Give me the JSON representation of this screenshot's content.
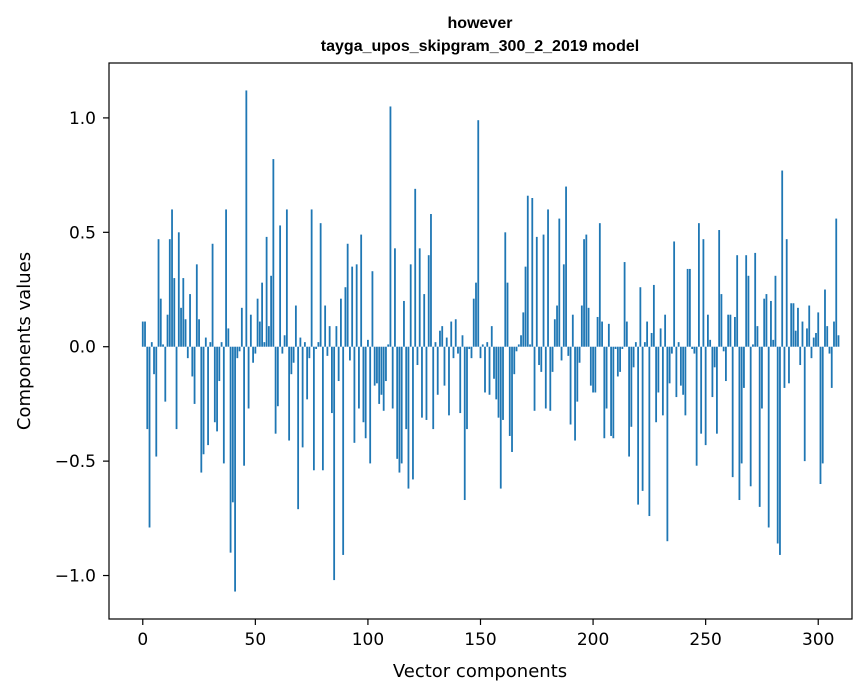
{
  "chart_data": {
    "type": "bar",
    "title": "however",
    "subtitle": "tayga_upos_skipgram_300_2_2019 model",
    "xlabel": "Vector components",
    "ylabel": "Components values",
    "xlim": [
      -15,
      315
    ],
    "ylim": [
      -1.19,
      1.24
    ],
    "xticks": [
      0,
      50,
      100,
      150,
      200,
      250,
      300
    ],
    "xtick_labels": [
      "0",
      "50",
      "100",
      "150",
      "200",
      "250",
      "300"
    ],
    "yticks": [
      -1.0,
      -0.5,
      0.0,
      0.5,
      1.0
    ],
    "ytick_labels": [
      "−1.0",
      "−0.5",
      "0.0",
      "0.5",
      "1.0"
    ],
    "grid": false,
    "bar_color": "#1f77b4",
    "values": [
      0.11,
      0.11,
      -0.36,
      -0.79,
      0.02,
      -0.12,
      -0.48,
      0.47,
      0.21,
      0.01,
      -0.24,
      0.14,
      0.47,
      0.6,
      0.3,
      -0.36,
      0.5,
      0.17,
      0.3,
      0.12,
      -0.05,
      0.23,
      -0.13,
      -0.25,
      0.36,
      0.12,
      -0.55,
      -0.47,
      0.04,
      -0.43,
      0.02,
      0.45,
      -0.33,
      -0.37,
      -0.15,
      0.02,
      -0.51,
      0.6,
      0.08,
      -0.9,
      -0.68,
      -1.07,
      -0.05,
      -0.02,
      0.17,
      -0.52,
      1.12,
      -0.27,
      0.14,
      -0.07,
      -0.03,
      0.21,
      0.11,
      0.28,
      0.02,
      0.48,
      0.09,
      0.31,
      0.82,
      -0.38,
      -0.26,
      0.53,
      -0.03,
      0.05,
      0.6,
      -0.41,
      -0.12,
      -0.07,
      0.18,
      -0.71,
      0.04,
      -0.44,
      0.02,
      -0.23,
      -0.05,
      0.6,
      -0.54,
      -0.01,
      0.02,
      0.54,
      -0.54,
      0.18,
      -0.04,
      0.09,
      -0.29,
      -1.02,
      0.09,
      -0.15,
      0.21,
      -0.91,
      0.26,
      0.45,
      -0.06,
      0.35,
      -0.42,
      0.36,
      -0.27,
      0.49,
      -0.33,
      -0.4,
      0.03,
      -0.51,
      0.33,
      -0.17,
      -0.16,
      -0.25,
      -0.21,
      -0.28,
      -0.15,
      0.01,
      1.05,
      -0.27,
      0.43,
      -0.49,
      -0.55,
      -0.51,
      0.2,
      -0.36,
      -0.62,
      0.36,
      -0.58,
      0.69,
      -0.08,
      0.43,
      -0.31,
      0.23,
      -0.32,
      0.4,
      0.58,
      -0.36,
      0.02,
      -0.21,
      0.07,
      0.09,
      -0.17,
      0.04,
      -0.3,
      0.11,
      -0.05,
      0.12,
      -0.03,
      -0.29,
      0.05,
      -0.67,
      -0.36,
      -0.01,
      -0.05,
      0.21,
      0.28,
      0.99,
      -0.05,
      0.01,
      -0.2,
      0.02,
      -0.21,
      0.09,
      -0.14,
      -0.23,
      -0.31,
      -0.62,
      -0.32,
      0.5,
      0.28,
      -0.39,
      -0.46,
      -0.12,
      -0.02,
      0.01,
      0.05,
      0.15,
      0.35,
      0.66,
      0.01,
      0.65,
      -0.28,
      0.48,
      -0.08,
      -0.11,
      0.49,
      -0.27,
      0.6,
      -0.28,
      -0.11,
      0.12,
      0.18,
      0.56,
      -0.06,
      0.36,
      0.7,
      -0.04,
      -0.34,
      0.14,
      -0.41,
      -0.24,
      -0.07,
      0.18,
      0.47,
      0.49,
      0.17,
      -0.17,
      -0.2,
      -0.2,
      0.13,
      0.54,
      0.11,
      -0.4,
      -0.27,
      0.1,
      -0.39,
      -0.4,
      -0.01,
      -0.13,
      -0.11,
      -0.01,
      0.37,
      0.11,
      -0.48,
      -0.35,
      -0.09,
      0.02,
      -0.69,
      0.26,
      -0.63,
      0.02,
      0.11,
      -0.74,
      0.06,
      0.27,
      -0.33,
      -0.2,
      0.08,
      -0.3,
      0.14,
      -0.85,
      -0.16,
      -0.03,
      0.46,
      -0.22,
      0.02,
      -0.17,
      -0.21,
      -0.3,
      0.34,
      0.34,
      -0.01,
      -0.03,
      -0.52,
      0.54,
      -0.38,
      0.47,
      -0.43,
      0.14,
      0.03,
      -0.22,
      -0.09,
      -0.38,
      0.51,
      0.23,
      -0.02,
      -0.15,
      0.14,
      0.14,
      -0.57,
      0.13,
      0.4,
      -0.67,
      -0.51,
      -0.18,
      0.4,
      0.31,
      -0.61,
      0.01,
      0.41,
      0.09,
      -0.7,
      -0.27,
      0.21,
      0.23,
      -0.79,
      0.2,
      0.03,
      0.31,
      -0.86,
      -0.91,
      0.77,
      -0.18,
      0.47,
      -0.16,
      0.19,
      0.19,
      0.07,
      0.17,
      -0.08,
      0.11,
      -0.5,
      0.08,
      0.18,
      -0.05,
      0.04,
      0.06,
      0.15,
      -0.6,
      -0.51,
      0.25,
      0.09,
      -0.03,
      -0.18,
      0.11,
      0.56,
      0.05
    ]
  }
}
